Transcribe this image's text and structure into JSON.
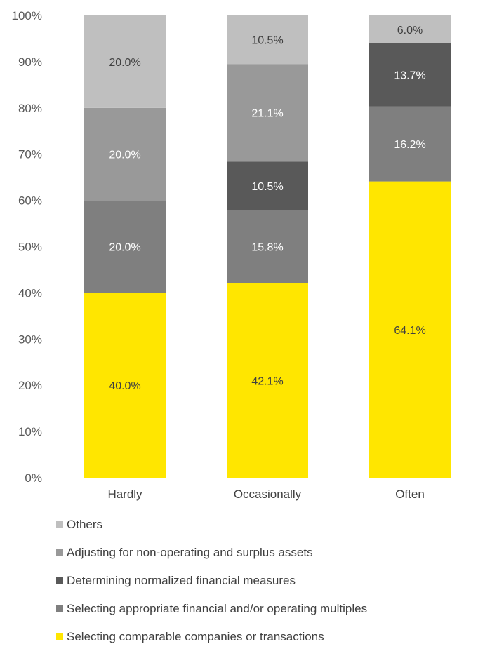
{
  "chart_data": {
    "type": "bar",
    "stacked": true,
    "categories": [
      "Hardly",
      "Occasionally",
      "Often"
    ],
    "ylim": [
      0,
      100
    ],
    "yticks": [
      "0%",
      "10%",
      "20%",
      "30%",
      "40%",
      "50%",
      "60%",
      "70%",
      "80%",
      "90%",
      "100%"
    ],
    "series": [
      {
        "name": "Selecting comparable companies or transactions",
        "values": [
          40.0,
          42.1,
          64.1
        ],
        "labels": [
          "40.0%",
          "42.1%",
          "64.1%"
        ],
        "color": "#FFE600"
      },
      {
        "name": "Selecting appropriate financial and/or operating multiples",
        "values": [
          20.0,
          15.8,
          16.2
        ],
        "labels": [
          "20.0%",
          "15.8%",
          "16.2%"
        ],
        "color": "#7F7F7F"
      },
      {
        "name": "Determining normalized financial measures",
        "values": [
          0,
          10.5,
          13.7
        ],
        "labels": [
          "",
          "10.5%",
          "13.7%"
        ],
        "color": "#595959"
      },
      {
        "name": "Adjusting for non-operating and surplus assets",
        "values": [
          20.0,
          21.1,
          0
        ],
        "labels": [
          "20.0%",
          "21.1%",
          ""
        ],
        "color": "#999999"
      },
      {
        "name": "Others",
        "values": [
          20.0,
          10.5,
          6.0
        ],
        "labels": [
          "20.0%",
          "10.5%",
          "6.0%"
        ],
        "color": "#BFBFBF"
      }
    ],
    "legend_order": [
      "Others",
      "Adjusting for non-operating and surplus assets",
      "Determining normalized financial measures",
      "Selecting appropriate financial and/or operating multiples",
      "Selecting comparable companies or transactions"
    ],
    "legend_position": "bottom",
    "grid": false
  }
}
